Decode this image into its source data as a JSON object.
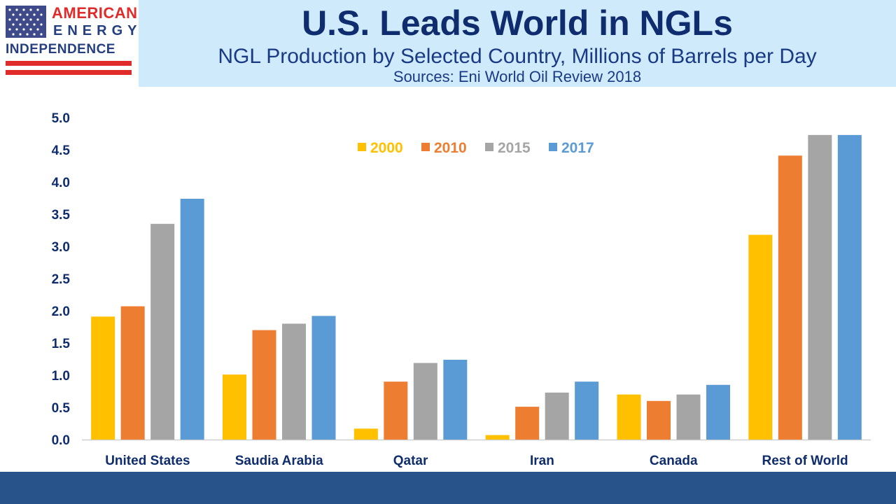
{
  "logo": {
    "line1": "AMERICAN",
    "line2": "ENERGY",
    "line3": "INDEPENDENCE",
    "colors": {
      "red": "#e02b2b",
      "blue": "#243f80",
      "flag": "#3f4a8a"
    }
  },
  "header": {
    "title": "U.S. Leads World in NGLs",
    "subtitle": "NGL Production by Selected Country, Millions of Barrels per Day",
    "source": "Sources: Eni World Oil Review 2018",
    "background": "#cfeafb"
  },
  "chart_data": {
    "type": "bar",
    "title": "U.S. Leads World in NGLs",
    "subtitle": "NGL Production by Selected Country, Millions of Barrels per Day",
    "xlabel": "",
    "ylabel": "",
    "ylim": [
      0,
      5.0
    ],
    "yticks": [
      "0.0",
      "0.5",
      "1.0",
      "1.5",
      "2.0",
      "2.5",
      "3.0",
      "3.5",
      "4.0",
      "4.5",
      "5.0"
    ],
    "grid": false,
    "legend_position": "top-center",
    "categories": [
      "United States",
      "Saudia Arabia",
      "Qatar",
      "Iran",
      "Canada",
      "Rest of World"
    ],
    "series": [
      {
        "name": "2000",
        "color": "#ffc000",
        "values": [
          1.91,
          1.01,
          0.17,
          0.07,
          0.7,
          3.18
        ]
      },
      {
        "name": "2010",
        "color": "#ed7d31",
        "values": [
          2.07,
          1.7,
          0.9,
          0.51,
          0.6,
          4.41
        ]
      },
      {
        "name": "2015",
        "color": "#a5a5a5",
        "values": [
          3.35,
          1.8,
          1.19,
          0.73,
          0.7,
          4.73
        ]
      },
      {
        "name": "2017",
        "color": "#5b9bd5",
        "values": [
          3.74,
          1.92,
          1.24,
          0.9,
          0.85,
          4.73
        ]
      }
    ]
  },
  "footer": {
    "color": "#27538a"
  }
}
